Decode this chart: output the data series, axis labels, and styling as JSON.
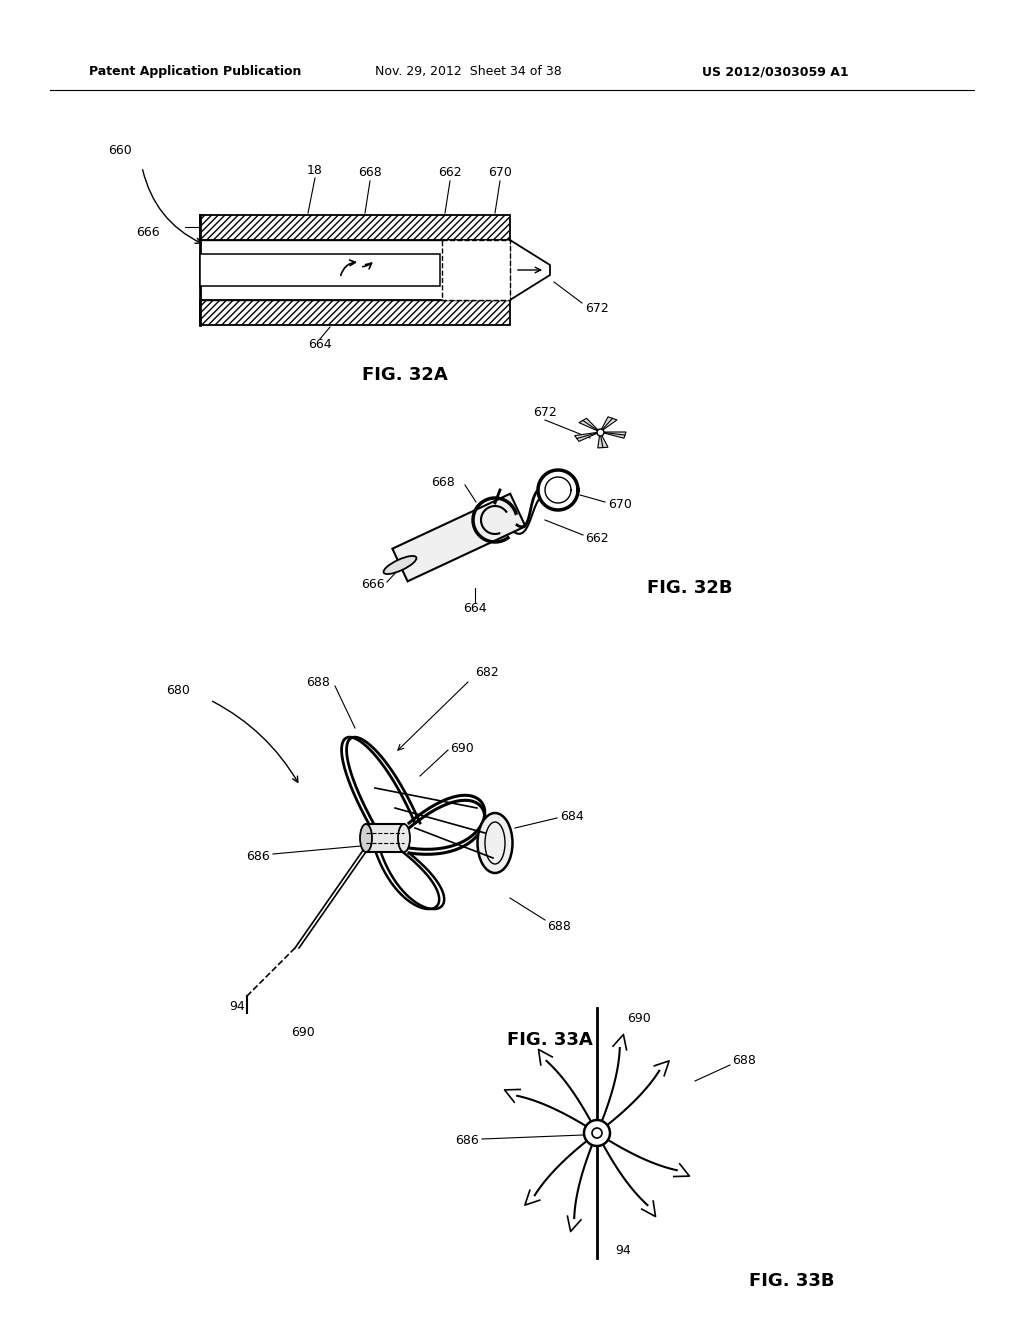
{
  "header_left": "Patent Application Publication",
  "header_mid": "Nov. 29, 2012  Sheet 34 of 38",
  "header_right": "US 2012/0303059 A1",
  "fig32a_label": "FIG. 32A",
  "fig32b_label": "FIG. 32B",
  "fig33a_label": "FIG. 33A",
  "fig33b_label": "FIG. 33B",
  "bg_color": "#ffffff",
  "line_color": "#000000"
}
